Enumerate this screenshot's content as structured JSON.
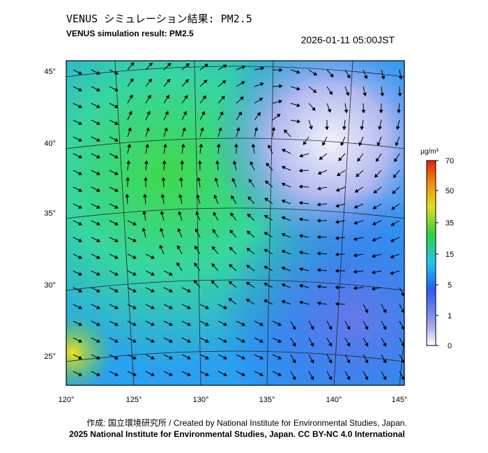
{
  "header": {
    "title": "VENUS シミュレーション結果: PM2.5",
    "subtitle": "VENUS simulation result: PM2.5",
    "timestamp": "2026-01-11 05:00JST"
  },
  "map": {
    "lat_labels": [
      "45°",
      "40°",
      "35°",
      "30°",
      "25°"
    ],
    "lon_labels": [
      "120°",
      "125°",
      "130°",
      "135°",
      "140°",
      "145°"
    ]
  },
  "colorbar": {
    "unit": "μg/m³",
    "ticks": [
      "70",
      "50",
      "35",
      "15",
      "5",
      "1",
      "0"
    ]
  },
  "footer": {
    "credit": "作成: 国立環境研究所 / Created by National Institute for Environmental Studies, Japan.",
    "copyright": "2025 National Institute for Environmental Studies, Japan. CC BY-NC 4.0 International"
  }
}
